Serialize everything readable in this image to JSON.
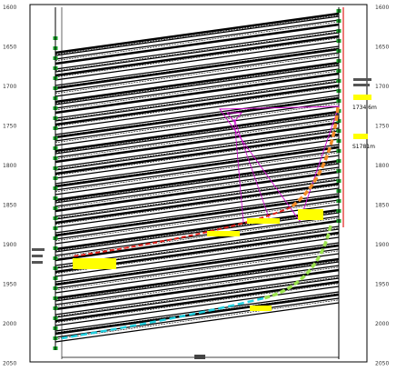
{
  "depth_scale": {
    "left_ticks": [
      "1600",
      "1650",
      "1700",
      "1750",
      "1800",
      "1850",
      "1900",
      "1950",
      "2000",
      "2050"
    ],
    "right_ticks": [
      "1600",
      "1650",
      "1700",
      "1750",
      "1800",
      "1850",
      "1900",
      "1950",
      "2000",
      "2050"
    ]
  },
  "annotations": {
    "depth_label_1": "1734.6m",
    "depth_label_2": "S1781m"
  },
  "colors": {
    "background": "#ffffff",
    "strata": "#000000",
    "well_red": "#e0201a",
    "well_orange": "#f28c28",
    "well_cyan": "#1fd0e0",
    "well_green": "#9be24f",
    "marker_green": "#1aa52a",
    "highlight_yellow": "#ffff00",
    "magenta": "#d000d0"
  }
}
